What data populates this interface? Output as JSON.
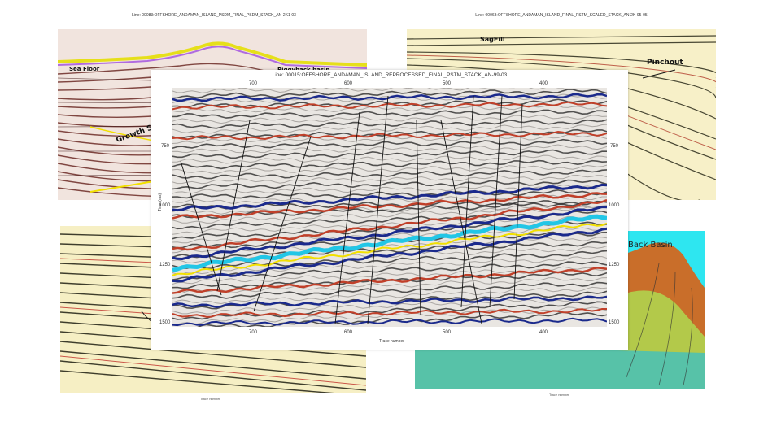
{
  "panels": {
    "top_left": {
      "title": "Line: 00083:OFFSHORE_ANDAMAN_ISLAND_PSDM_FINAL_PSDM_STACK_AN-2K1-03",
      "annotations": {
        "sea_floor": "Sea Floor",
        "growth": "Growth Strata",
        "piggyback": "Piggyback basin"
      }
    },
    "top_right": {
      "title": "Line: 00063:OFFSHORE_ANDAMAN_ISLAND_FINAL_PSTM_SCALED_STACK_AN-2K-95-05",
      "annotations": {
        "sagfill": "SagFill",
        "pinchout": "Pinchout"
      }
    },
    "bottom_left": {
      "xlabel": "Trace number"
    },
    "bottom_right": {
      "annotation": "Back Basin",
      "xlabel": "Trace number"
    },
    "main": {
      "title": "Line: 00015:OFFSHORE_ANDAMAN_ISLAND_REPROCESSED_FINAL_PSTM_STACK_AN-99-03",
      "xlabel": "Trace number",
      "ylabel": "Time (ms)",
      "x_ticks": [
        "700",
        "600",
        "500",
        "400"
      ],
      "y_ticks": [
        "750",
        "1000",
        "1250",
        "1500"
      ]
    }
  },
  "colors": {
    "hot": "#c0402a",
    "cold": "#1b2a8c",
    "cyan": "#22c6e6",
    "yellow": "#f2e000",
    "back_basin_bg": "#2ee6f0"
  }
}
